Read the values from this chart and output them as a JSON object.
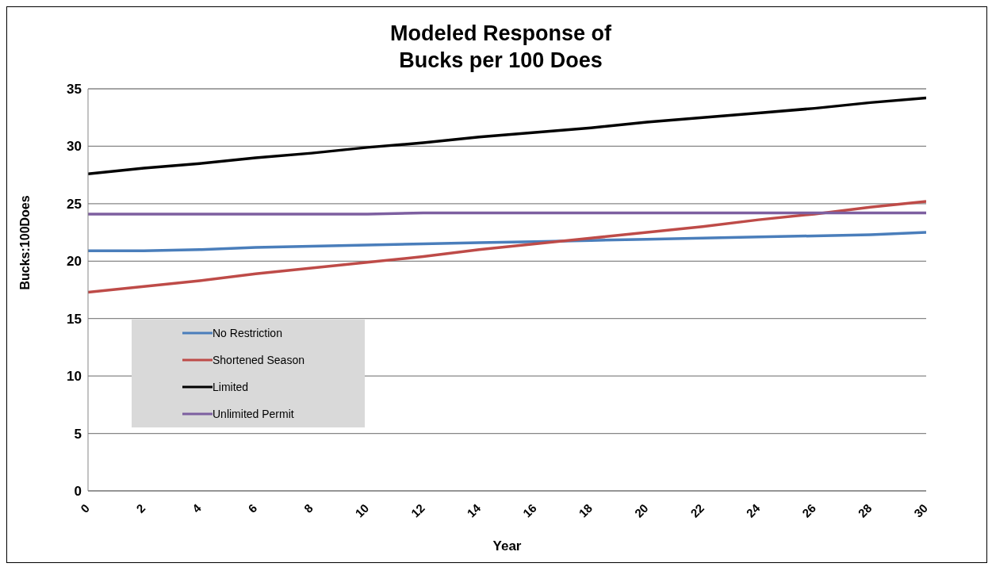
{
  "chart_data": {
    "type": "line",
    "title": "Modeled Response of\nBucks per 100 Does",
    "xlabel": "Year",
    "ylabel": "Bucks:100Does",
    "x": [
      0,
      2,
      4,
      6,
      8,
      10,
      12,
      14,
      16,
      18,
      20,
      22,
      24,
      26,
      28,
      30
    ],
    "series": [
      {
        "name": "No Restriction",
        "color": "#4a7ebb",
        "values": [
          20.9,
          20.9,
          21.0,
          21.2,
          21.3,
          21.4,
          21.5,
          21.6,
          21.7,
          21.8,
          21.9,
          22.0,
          22.1,
          22.2,
          22.3,
          22.5
        ]
      },
      {
        "name": "Shortened Season",
        "color": "#be4b48",
        "values": [
          17.3,
          17.8,
          18.3,
          18.9,
          19.4,
          19.9,
          20.4,
          21.0,
          21.5,
          22.0,
          22.5,
          23.0,
          23.6,
          24.1,
          24.7,
          25.2
        ]
      },
      {
        "name": "Limited",
        "color": "#000000",
        "values": [
          27.6,
          28.1,
          28.5,
          29.0,
          29.4,
          29.9,
          30.3,
          30.8,
          31.2,
          31.6,
          32.1,
          32.5,
          32.9,
          33.3,
          33.8,
          34.2
        ]
      },
      {
        "name": "Unlimited Permit",
        "color": "#7d5fa0",
        "values": [
          24.1,
          24.1,
          24.1,
          24.1,
          24.1,
          24.1,
          24.2,
          24.2,
          24.2,
          24.2,
          24.2,
          24.2,
          24.2,
          24.2,
          24.2,
          24.2
        ]
      }
    ],
    "xlim": [
      0,
      30
    ],
    "xticks": [
      0,
      2,
      4,
      6,
      8,
      10,
      12,
      14,
      16,
      18,
      20,
      22,
      24,
      26,
      28,
      30
    ],
    "ylim": [
      0,
      35
    ],
    "yticks": [
      0,
      5,
      10,
      15,
      20,
      25,
      30,
      35
    ],
    "grid": "y",
    "legend": "bottom left",
    "marker": "none",
    "line_style": "solid"
  }
}
